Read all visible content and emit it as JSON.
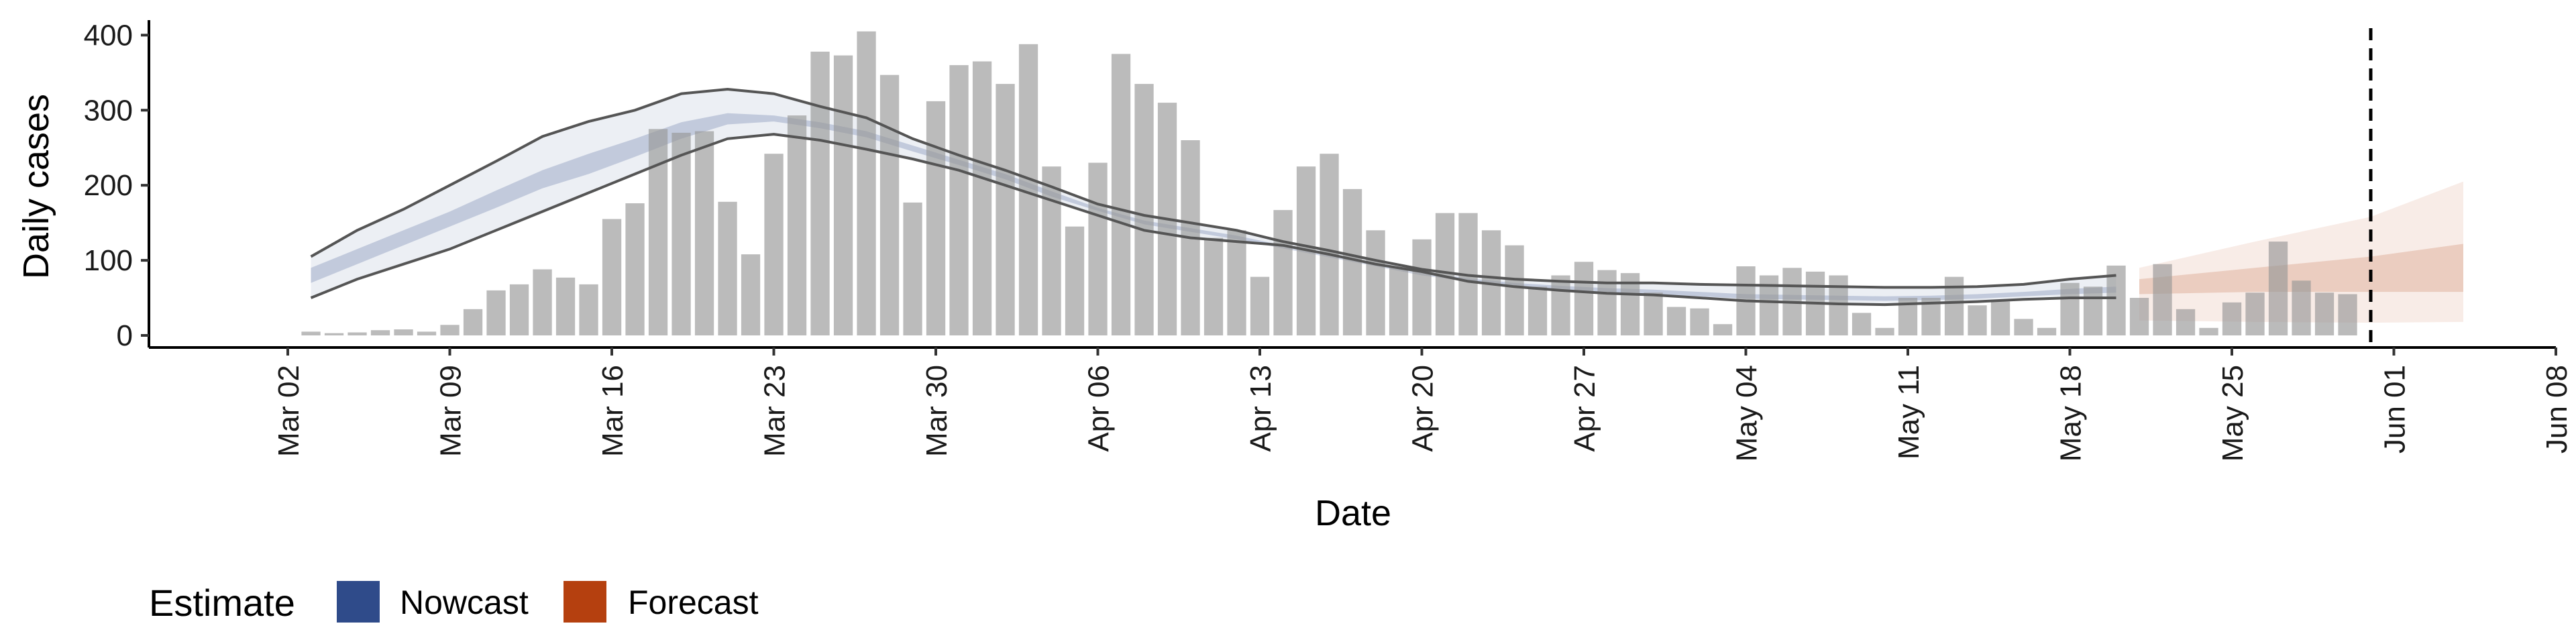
{
  "chart_data": {
    "type": "bar",
    "xlabel": "Date",
    "ylabel": "Daily cases",
    "ylim": [
      0,
      420
    ],
    "y_ticks": [
      0,
      100,
      200,
      300,
      400
    ],
    "x_tick_labels": [
      "Mar 02",
      "Mar 09",
      "Mar 16",
      "Mar 23",
      "Mar 30",
      "Apr 06",
      "Apr 13",
      "Apr 20",
      "Apr 27",
      "May 04",
      "May 11",
      "May 18",
      "May 25",
      "Jun 01",
      "Jun 08"
    ],
    "x_tick_dates": [
      "2020-03-02",
      "2020-03-09",
      "2020-03-16",
      "2020-03-23",
      "2020-03-30",
      "2020-04-06",
      "2020-04-13",
      "2020-04-20",
      "2020-04-27",
      "2020-05-04",
      "2020-05-11",
      "2020-05-18",
      "2020-05-25",
      "2020-06-01",
      "2020-06-08"
    ],
    "x_range": [
      "2020-02-25",
      "2020-06-08"
    ],
    "grid": false,
    "vline_date": "2020-05-31",
    "dates_start": "2020-03-03",
    "daily_cases": [
      5,
      3,
      4,
      7,
      8,
      5,
      14,
      35,
      60,
      68,
      88,
      77,
      68,
      155,
      176,
      275,
      270,
      272,
      178,
      108,
      242,
      293,
      378,
      373,
      405,
      347,
      177,
      312,
      360,
      365,
      335,
      388,
      225,
      145,
      230,
      375,
      335,
      310,
      260,
      130,
      140,
      78,
      167,
      225,
      242,
      195,
      140,
      90,
      128,
      163,
      163,
      140,
      120,
      65,
      80,
      98,
      87,
      83,
      57,
      38,
      36,
      15,
      92,
      80,
      90,
      85,
      80,
      30,
      10,
      50,
      50,
      78,
      40,
      45,
      22,
      10,
      70,
      65,
      93,
      50,
      95,
      35,
      10,
      44,
      57,
      125,
      73,
      57,
      55
    ],
    "series": [
      {
        "name": "Nowcast",
        "color": "#2f4b8a",
        "dates": [
          "2020-03-03",
          "2020-03-05",
          "2020-03-07",
          "2020-03-09",
          "2020-03-11",
          "2020-03-13",
          "2020-03-15",
          "2020-03-17",
          "2020-03-19",
          "2020-03-21",
          "2020-03-23",
          "2020-03-25",
          "2020-03-27",
          "2020-03-29",
          "2020-03-31",
          "2020-04-02",
          "2020-04-04",
          "2020-04-06",
          "2020-04-08",
          "2020-04-10",
          "2020-04-12",
          "2020-04-14",
          "2020-04-16",
          "2020-04-18",
          "2020-04-20",
          "2020-04-22",
          "2020-04-24",
          "2020-04-26",
          "2020-04-28",
          "2020-04-30",
          "2020-05-02",
          "2020-05-04",
          "2020-05-06",
          "2020-05-08",
          "2020-05-10",
          "2020-05-12",
          "2020-05-14",
          "2020-05-16",
          "2020-05-18",
          "2020-05-20"
        ],
        "lower_90": [
          50,
          75,
          95,
          115,
          140,
          165,
          190,
          215,
          240,
          262,
          268,
          260,
          248,
          235,
          220,
          200,
          180,
          160,
          140,
          130,
          125,
          120,
          108,
          95,
          85,
          72,
          65,
          60,
          56,
          54,
          50,
          46,
          44,
          42,
          41,
          43,
          45,
          48,
          50,
          50
        ],
        "upper_90": [
          105,
          140,
          168,
          200,
          232,
          265,
          285,
          300,
          322,
          328,
          322,
          305,
          290,
          262,
          240,
          220,
          198,
          175,
          160,
          150,
          140,
          125,
          113,
          100,
          88,
          80,
          75,
          72,
          70,
          70,
          68,
          67,
          66,
          65,
          64,
          64,
          65,
          68,
          75,
          80
        ],
        "lower_50": [
          70,
          95,
          120,
          145,
          170,
          196,
          215,
          238,
          262,
          281,
          285,
          276,
          264,
          245,
          227,
          208,
          185,
          166,
          148,
          138,
          128,
          116,
          104,
          92,
          80,
          72,
          66,
          61,
          58,
          55,
          52,
          49,
          48,
          47,
          46,
          47,
          49,
          52,
          55,
          57
        ],
        "upper_50": [
          90,
          115,
          140,
          165,
          193,
          220,
          242,
          262,
          284,
          296,
          293,
          284,
          272,
          253,
          234,
          215,
          192,
          170,
          153,
          143,
          133,
          120,
          108,
          96,
          84,
          76,
          70,
          66,
          63,
          61,
          58,
          55,
          54,
          53,
          52,
          53,
          55,
          58,
          62,
          65
        ]
      },
      {
        "name": "Forecast",
        "color": "#b5400f",
        "dates": [
          "2020-05-21",
          "2020-05-26",
          "2020-05-31",
          "2020-06-04"
        ],
        "lower_90": [
          20,
          18,
          17,
          18
        ],
        "upper_90": [
          90,
          125,
          158,
          205
        ],
        "lower_50": [
          55,
          58,
          58,
          58
        ],
        "upper_50": [
          75,
          90,
          105,
          122
        ]
      }
    ],
    "legend": {
      "title": "Estimate",
      "position": "bottom-left",
      "items": [
        {
          "label": "Nowcast",
          "color": "#2f4b8a"
        },
        {
          "label": "Forecast",
          "color": "#b5400f"
        }
      ]
    }
  }
}
